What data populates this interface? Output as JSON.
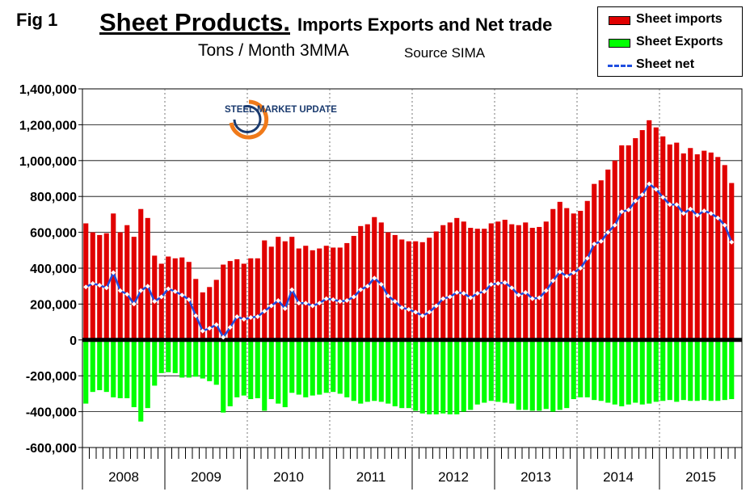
{
  "fig_label": "Fig 1",
  "title_main": "Sheet Products.",
  "title_rest": "Imports Exports and Net trade",
  "subtitle": "Tons / Month 3MMA",
  "source": "Source SIMA",
  "logo_text": "STEEL MARKET UPDATE",
  "colors": {
    "imports": "#e00000",
    "exports": "#00ff00",
    "net": "#1f4ee0",
    "zero_line": "#000000"
  },
  "chart_data": {
    "type": "bar",
    "x_labels": [
      "2008",
      "2009",
      "2010",
      "2011",
      "2012",
      "2013",
      "2014",
      "2015"
    ],
    "ylim": [
      -600000,
      1400000
    ],
    "ytick_labels": [
      "1,400,000",
      "1,200,000",
      "1,000,000",
      "800,000",
      "600,000",
      "400,000",
      "200,000",
      "0",
      "-200,000",
      "-400,000",
      "-600,000"
    ],
    "series": [
      {
        "name": "Sheet imports",
        "kind": "bar",
        "values": [
          650000,
          600000,
          585000,
          595000,
          705000,
          600000,
          640000,
          575000,
          730000,
          680000,
          470000,
          425000,
          465000,
          455000,
          460000,
          435000,
          340000,
          265000,
          295000,
          335000,
          420000,
          440000,
          450000,
          425000,
          455000,
          455000,
          555000,
          520000,
          575000,
          550000,
          575000,
          510000,
          525000,
          500000,
          510000,
          525000,
          515000,
          515000,
          540000,
          580000,
          635000,
          645000,
          685000,
          655000,
          600000,
          585000,
          560000,
          550000,
          550000,
          545000,
          570000,
          605000,
          640000,
          655000,
          680000,
          660000,
          625000,
          620000,
          620000,
          650000,
          660000,
          670000,
          645000,
          640000,
          655000,
          625000,
          630000,
          660000,
          730000,
          770000,
          735000,
          705000,
          720000,
          775000,
          870000,
          890000,
          950000,
          1000000,
          1085000,
          1085000,
          1125000,
          1170000,
          1225000,
          1185000,
          1135000,
          1090000,
          1100000,
          1040000,
          1070000,
          1035000,
          1055000,
          1045000,
          1020000,
          975000,
          875000
        ]
      },
      {
        "name": "Sheet Exports",
        "kind": "bar",
        "values": [
          -355000,
          -290000,
          -280000,
          -290000,
          -320000,
          -325000,
          -325000,
          -375000,
          -455000,
          -380000,
          -255000,
          -185000,
          -180000,
          -185000,
          -210000,
          -210000,
          -205000,
          -215000,
          -230000,
          -250000,
          -405000,
          -370000,
          -320000,
          -310000,
          -330000,
          -325000,
          -395000,
          -330000,
          -355000,
          -375000,
          -295000,
          -305000,
          -320000,
          -310000,
          -305000,
          -295000,
          -290000,
          -300000,
          -320000,
          -340000,
          -355000,
          -345000,
          -340000,
          -345000,
          -355000,
          -370000,
          -380000,
          -380000,
          -395000,
          -410000,
          -415000,
          -415000,
          -410000,
          -415000,
          -415000,
          -400000,
          -390000,
          -360000,
          -350000,
          -340000,
          -345000,
          -350000,
          -355000,
          -390000,
          -390000,
          -395000,
          -395000,
          -385000,
          -400000,
          -390000,
          -380000,
          -330000,
          -320000,
          -320000,
          -335000,
          -340000,
          -350000,
          -360000,
          -370000,
          -360000,
          -350000,
          -360000,
          -355000,
          -345000,
          -340000,
          -335000,
          -345000,
          -335000,
          -340000,
          -340000,
          -335000,
          -340000,
          -340000,
          -335000,
          -330000
        ]
      },
      {
        "name": "Sheet net",
        "kind": "line",
        "values": [
          295000,
          315000,
          305000,
          290000,
          375000,
          275000,
          255000,
          200000,
          275000,
          300000,
          215000,
          240000,
          285000,
          270000,
          250000,
          225000,
          135000,
          50000,
          65000,
          85000,
          15000,
          70000,
          130000,
          115000,
          125000,
          130000,
          160000,
          190000,
          220000,
          175000,
          280000,
          205000,
          205000,
          190000,
          205000,
          230000,
          225000,
          215000,
          220000,
          240000,
          280000,
          300000,
          345000,
          310000,
          245000,
          215000,
          180000,
          170000,
          155000,
          135000,
          155000,
          190000,
          230000,
          240000,
          265000,
          260000,
          235000,
          260000,
          270000,
          310000,
          315000,
          320000,
          290000,
          250000,
          265000,
          230000,
          235000,
          275000,
          330000,
          380000,
          355000,
          375000,
          400000,
          455000,
          535000,
          550000,
          600000,
          640000,
          715000,
          725000,
          775000,
          810000,
          870000,
          840000,
          795000,
          755000,
          755000,
          705000,
          730000,
          695000,
          720000,
          705000,
          680000,
          640000,
          545000
        ]
      }
    ],
    "legend_position": "top-right",
    "grid": "horizontal major lines, dotted vertical lines at year boundaries"
  }
}
